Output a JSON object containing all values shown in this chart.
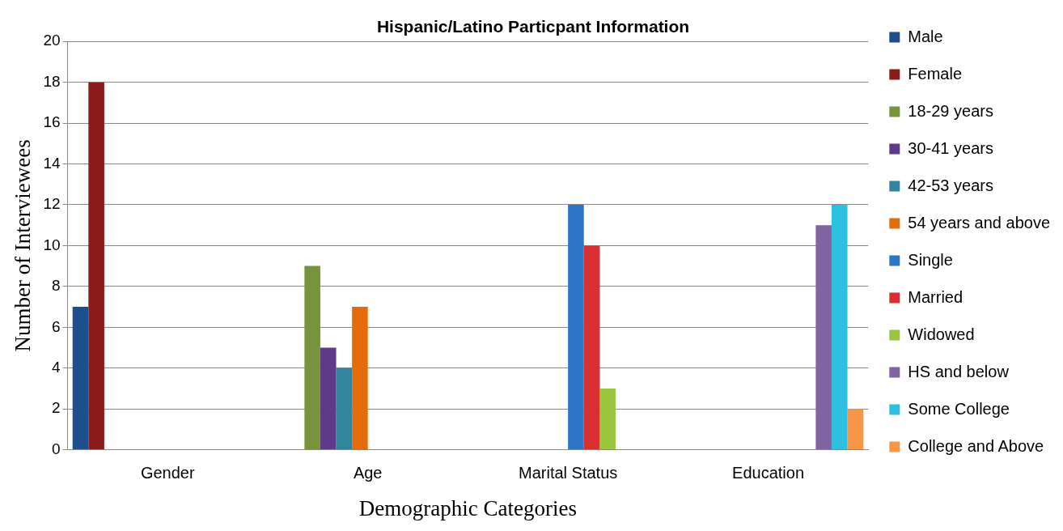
{
  "chart_data": {
    "type": "bar",
    "title": "Hispanic/Latino Particpant Information",
    "xlabel": "Demographic Categories",
    "ylabel": "Number of Interviewees",
    "categories": [
      "Gender",
      "Age",
      "Marital Status",
      "Education"
    ],
    "series": [
      {
        "name": "Male",
        "color": "#1f4e8c",
        "values": [
          7,
          null,
          null,
          null
        ]
      },
      {
        "name": "Female",
        "color": "#8b1a1a",
        "values": [
          18,
          null,
          null,
          null
        ]
      },
      {
        "name": "18-29 years",
        "color": "#77933c",
        "values": [
          null,
          9,
          null,
          null
        ]
      },
      {
        "name": "30-41 years",
        "color": "#5f3a8a",
        "values": [
          null,
          5,
          null,
          null
        ]
      },
      {
        "name": "42-53 years",
        "color": "#31859c",
        "values": [
          null,
          4,
          null,
          null
        ]
      },
      {
        "name": "54 years and above",
        "color": "#e46c0a",
        "values": [
          null,
          7,
          null,
          null
        ]
      },
      {
        "name": "Single",
        "color": "#2e75c6",
        "values": [
          null,
          null,
          12,
          null
        ]
      },
      {
        "name": "Married",
        "color": "#d83030",
        "values": [
          null,
          null,
          10,
          null
        ]
      },
      {
        "name": "Widowed",
        "color": "#9bc53d",
        "values": [
          null,
          null,
          3,
          null
        ]
      },
      {
        "name": "HS and below",
        "color": "#8064a2",
        "values": [
          null,
          null,
          null,
          11
        ]
      },
      {
        "name": "Some College",
        "color": "#2ec0e0",
        "values": [
          null,
          null,
          null,
          12
        ]
      },
      {
        "name": "College and Above",
        "color": "#f79646",
        "values": [
          null,
          null,
          null,
          2
        ]
      }
    ],
    "ylim": [
      0,
      20
    ],
    "yticks": [
      0,
      2,
      4,
      6,
      8,
      10,
      12,
      14,
      16,
      18,
      20
    ],
    "grid": "y",
    "legend": "right"
  }
}
